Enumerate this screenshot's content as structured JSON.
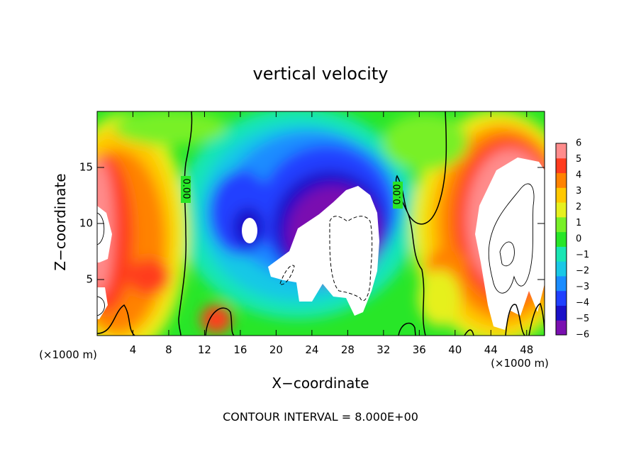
{
  "chart_data": {
    "type": "heatmap",
    "title": "vertical velocity",
    "xlabel": "X−coordinate",
    "ylabel": "Z−coordinate",
    "x_unit": "(×1000 m)",
    "x_unit_right": "(×1000 m)",
    "xlim": [
      0,
      50
    ],
    "ylim": [
      0,
      20
    ],
    "x_ticks": [
      4,
      8,
      12,
      16,
      20,
      24,
      28,
      32,
      36,
      40,
      44,
      48
    ],
    "y_ticks": [
      5,
      10,
      15
    ],
    "contour_labels": [
      "0.00",
      "0.00"
    ],
    "footer": "CONTOUR INTERVAL = 8.000E+00",
    "colorbar": {
      "levels": [
        "6",
        "5",
        "4",
        "3",
        "2",
        "1",
        "0",
        "−1",
        "−2",
        "−3",
        "−4",
        "−5",
        "−6"
      ],
      "range": [
        -6,
        6
      ],
      "colors": [
        "#7a10b0",
        "#1a10c8",
        "#2040ff",
        "#1a8cff",
        "#19c8e6",
        "#19e6b4",
        "#28e628",
        "#78f028",
        "#e6f01e",
        "#ffc800",
        "#ff8200",
        "#ff3c1e",
        "#ff8c8c"
      ]
    },
    "features": [
      {
        "kind": "updraft-column",
        "x_range": [
          0,
          9
        ],
        "z_range": [
          0,
          18
        ],
        "sign": "positive",
        "level_max": 6
      },
      {
        "kind": "downdraft-core",
        "x_range": [
          17,
          33
        ],
        "z_range": [
          1,
          17
        ],
        "sign": "negative",
        "level_min": -6
      },
      {
        "kind": "updraft-column",
        "x_range": [
          38,
          50
        ],
        "z_range": [
          0,
          18
        ],
        "sign": "positive",
        "level_max": 6
      }
    ]
  }
}
